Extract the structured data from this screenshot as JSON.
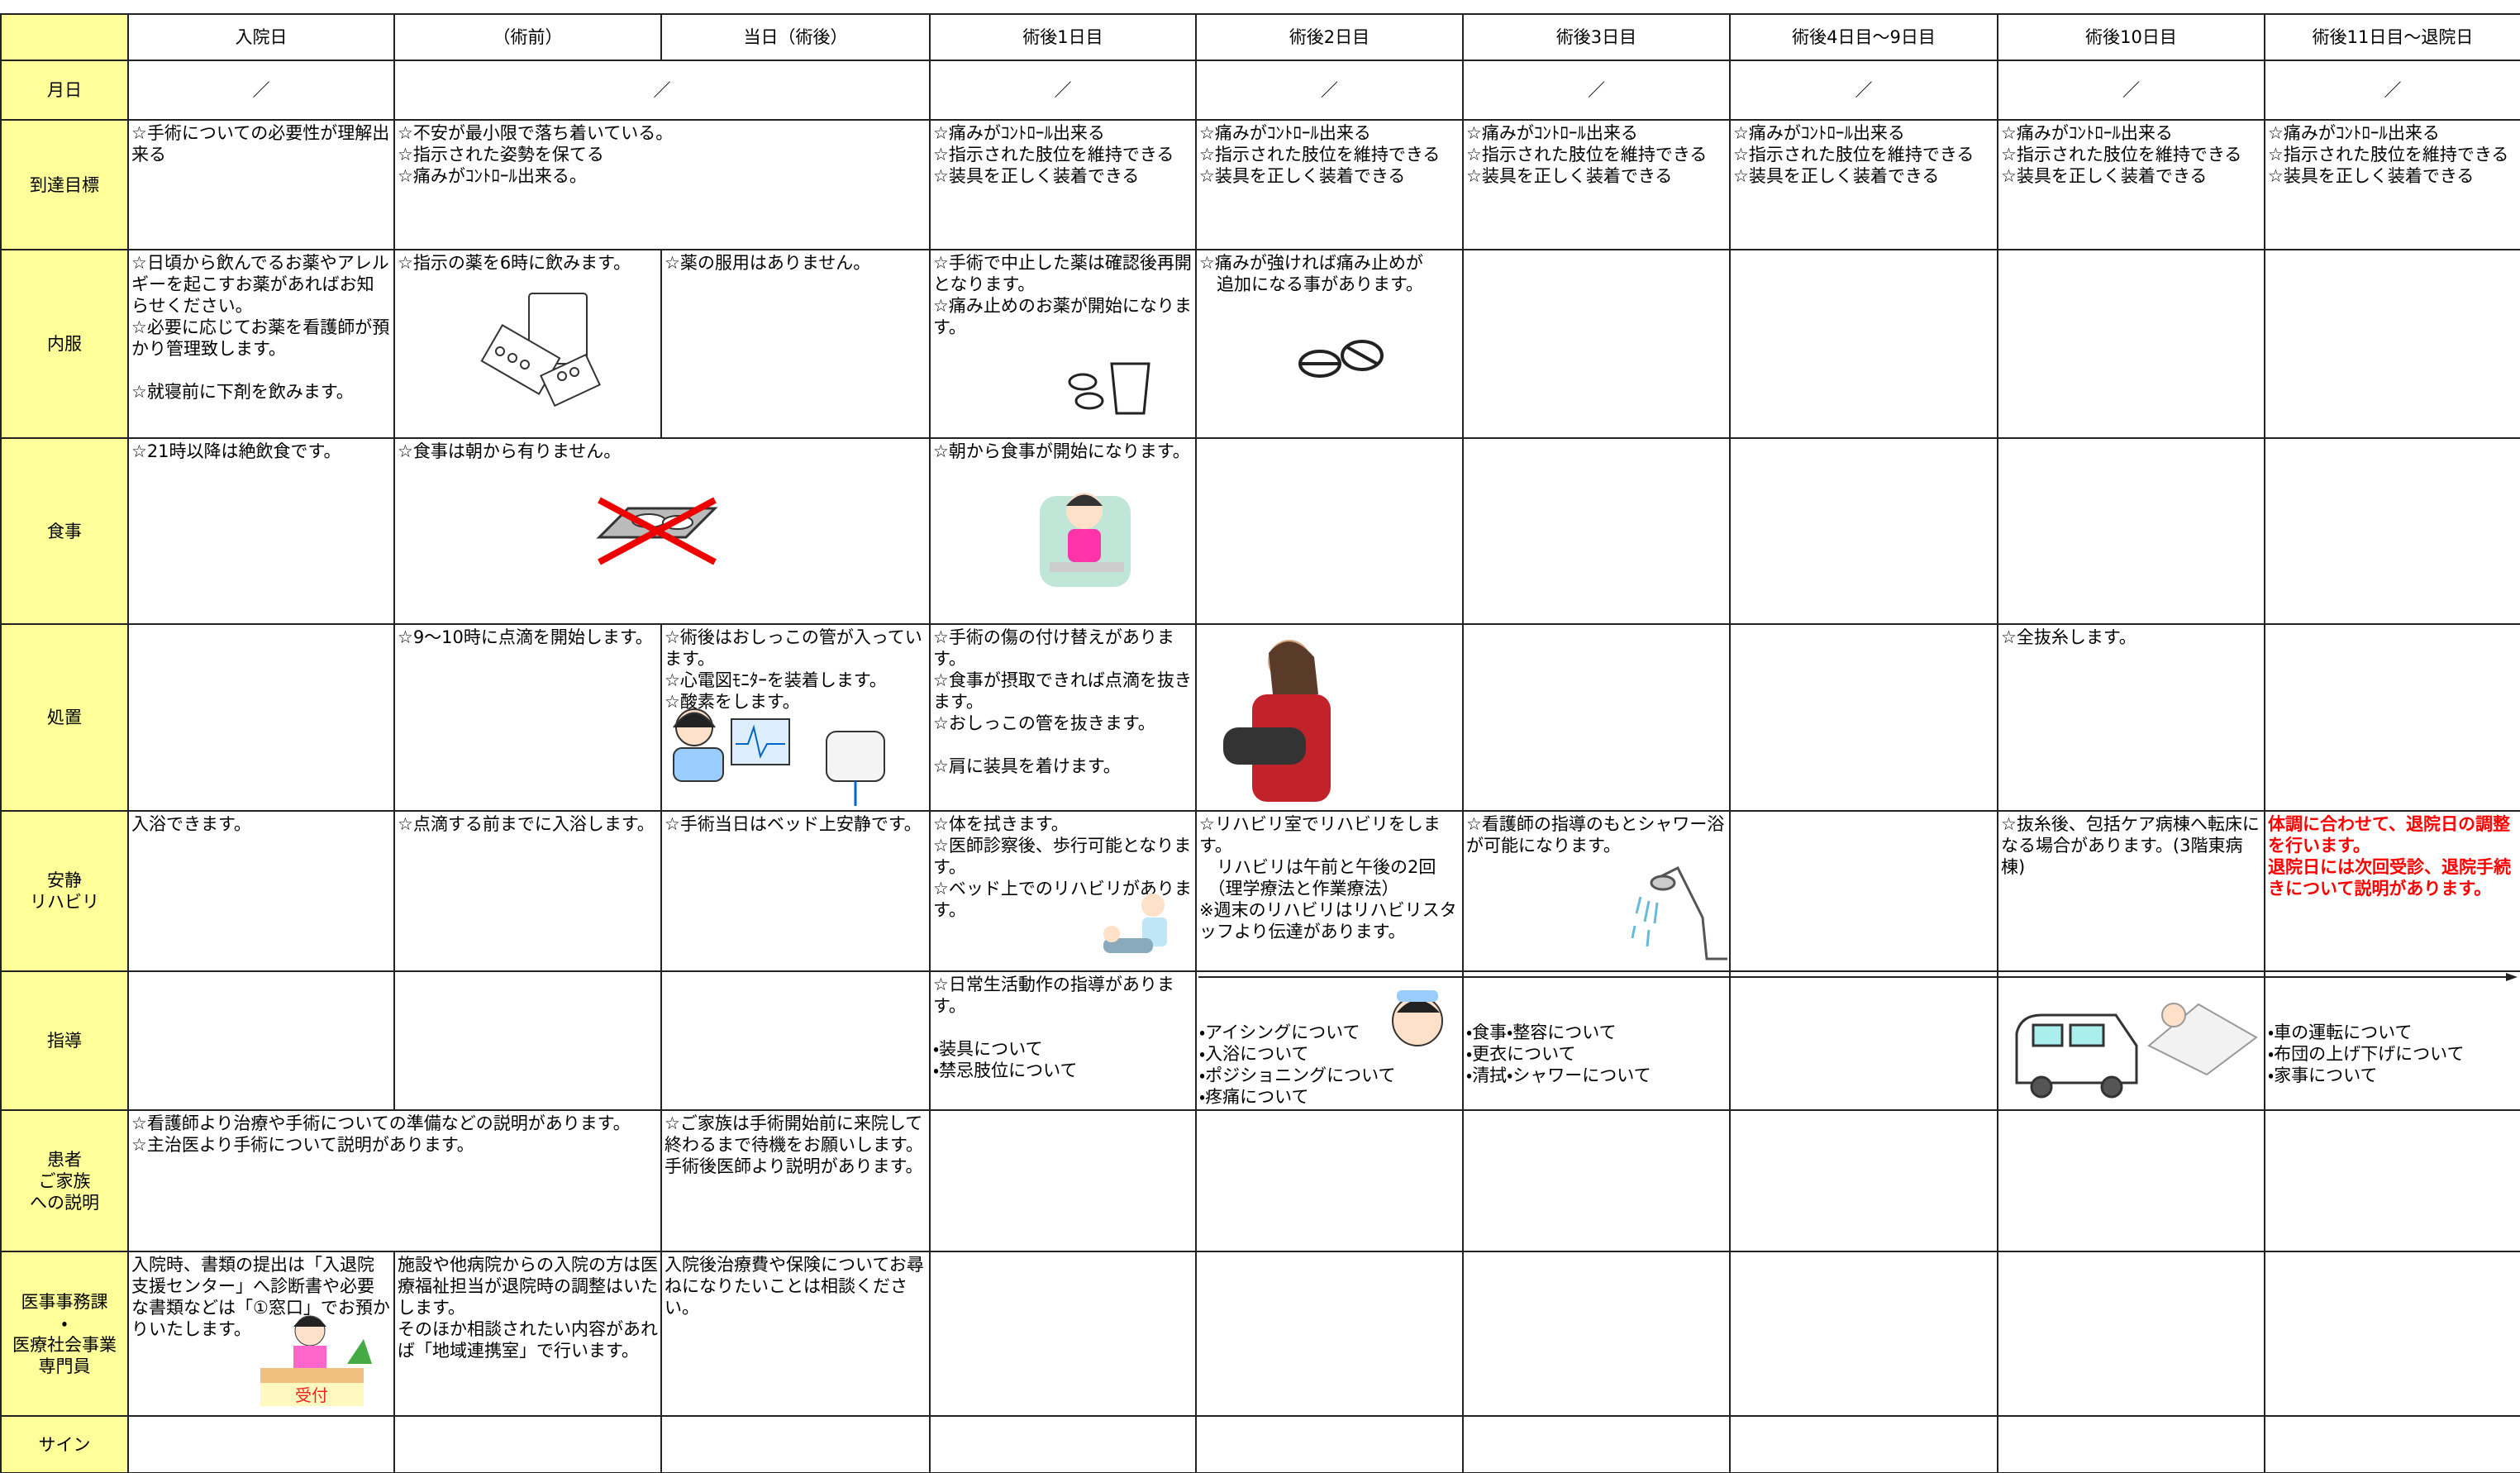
{
  "header": {
    "corner": "",
    "columns": [
      "入院日",
      "（術前）",
      "当日（術後）",
      "術後1日目",
      "術後2日目",
      "術後3日目",
      "術後4日目～9日目",
      "術後10日目",
      "術後11日目～退院日"
    ]
  },
  "rows": [
    {
      "label": "月日",
      "cells": [
        "／",
        "／",
        "／",
        "／",
        "／",
        "／",
        "／",
        "／"
      ]
    },
    {
      "label": "到達目標",
      "cells": [
        "☆手術についての必要性が理解出来る",
        "☆不安が最小限で落ち着いている。\n☆指示された姿勢を保てる\n☆痛みがｺﾝﾄﾛｰﾙ出来る。",
        "☆痛みがｺﾝﾄﾛｰﾙ出来る\n☆指示された肢位を維持できる\n☆装具を正しく装着できる",
        "☆痛みがｺﾝﾄﾛｰﾙ出来る\n☆指示された肢位を維持できる\n☆装具を正しく装着できる",
        "☆痛みがｺﾝﾄﾛｰﾙ出来る\n☆指示された肢位を維持できる\n☆装具を正しく装着できる",
        "☆痛みがｺﾝﾄﾛｰﾙ出来る\n☆指示された肢位を維持できる\n☆装具を正しく装着できる",
        "☆痛みがｺﾝﾄﾛｰﾙ出来る\n☆指示された肢位を維持できる\n☆装具を正しく装着できる",
        "☆痛みがｺﾝﾄﾛｰﾙ出来る\n☆指示された肢位を維持できる\n☆装具を正しく装着できる"
      ]
    },
    {
      "label": "内服",
      "cells": [
        "☆日頃から飲んでるお薬やアレルギーを起こすお薬があればお知らせください。\n☆必要に応じてお薬を看護師が預かり管理致します。\n\n☆就寝前に下剤を飲みます。",
        "☆指示の薬を6時に飲みます。",
        "☆薬の服用はありません。",
        "☆手術で中止した薬は確認後再開となります。\n☆痛み止めのお薬が開始になります。",
        "☆痛みが強ければ痛み止めが\n　追加になる事があります。"
      ]
    },
    {
      "label": "食事",
      "cells": [
        "☆21時以降は絶飲食です。",
        "☆食事は朝から有りません。",
        "☆朝から食事が開始になります。"
      ]
    },
    {
      "label": "処置",
      "cells": [
        "☆9～10時に点滴を開始します。",
        "☆術後はおしっこの管が入っています。\n☆心電図ﾓﾆﾀｰを装着します。\n☆酸素をします。",
        "☆手術の傷の付け替えがあります。\n☆食事が摂取できれば点滴を抜きます。\n☆おしっこの管を抜きます。\n\n☆肩に装具を着けます。",
        "☆全抜糸します。"
      ]
    },
    {
      "label": "安静\nリハビリ",
      "cells": [
        "入浴できます。",
        "☆点滴する前までに入浴します。",
        "☆手術当日はベッド上安静です。",
        "☆体を拭きます。\n☆医師診察後、歩行可能となります。\n☆ベッド上でのリハビリがあります。",
        "☆リハビリ室でリハビリをします。\n　リハビリは午前と午後の2回\n　（理学療法と作業療法）\n※週末のリハビリはリハビリスタッフより伝達があります。",
        "☆看護師の指導のもとシャワー浴が可能になります。",
        "☆抜糸後、包括ケア病棟へ転床になる場合があります。(3階東病棟)",
        "体調に合わせて、退院日の調整を行います。\n退院日には次回受診、退院手続きについて説明があります。"
      ]
    },
    {
      "label": "指導",
      "cells": [
        "☆日常生活動作の指導があります。\n\n・装具について\n・禁忌肢位について",
        "・アイシングについて\n・入浴について\n・ポジショニングについて\n・疼痛について",
        "・食事・整容について\n・更衣について\n・清拭・シャワーについて",
        "・車の運転について\n・布団の上げ下げについて\n・家事について"
      ]
    },
    {
      "label": "患者\nご家族\nへの説明",
      "cells": [
        "☆看護師より治療や手術についての準備などの説明があります。\n☆主治医より手術について説明があります。",
        "☆ご家族は手術開始前に来院して終わるまで待機をお願いします。手術後医師より説明があります。"
      ]
    },
    {
      "label": "医事事務課\n・\n医療社会事業\n専門員",
      "cells": [
        "入院時、書類の提出は「入退院支援センター」へ診断書や必要な書類などは「①窓口」でお預かりいたします。",
        "施設や他病院からの入院の方は医療福祉担当が退院時の調整はいたします。\nそのほか相談されたい内容があれば「地域連携室」で行います。",
        "入院後治療費や保険についてお尋ねになりたいことは相談ください。"
      ]
    },
    {
      "label": "サイン"
    }
  ],
  "reception_sign": "受付"
}
